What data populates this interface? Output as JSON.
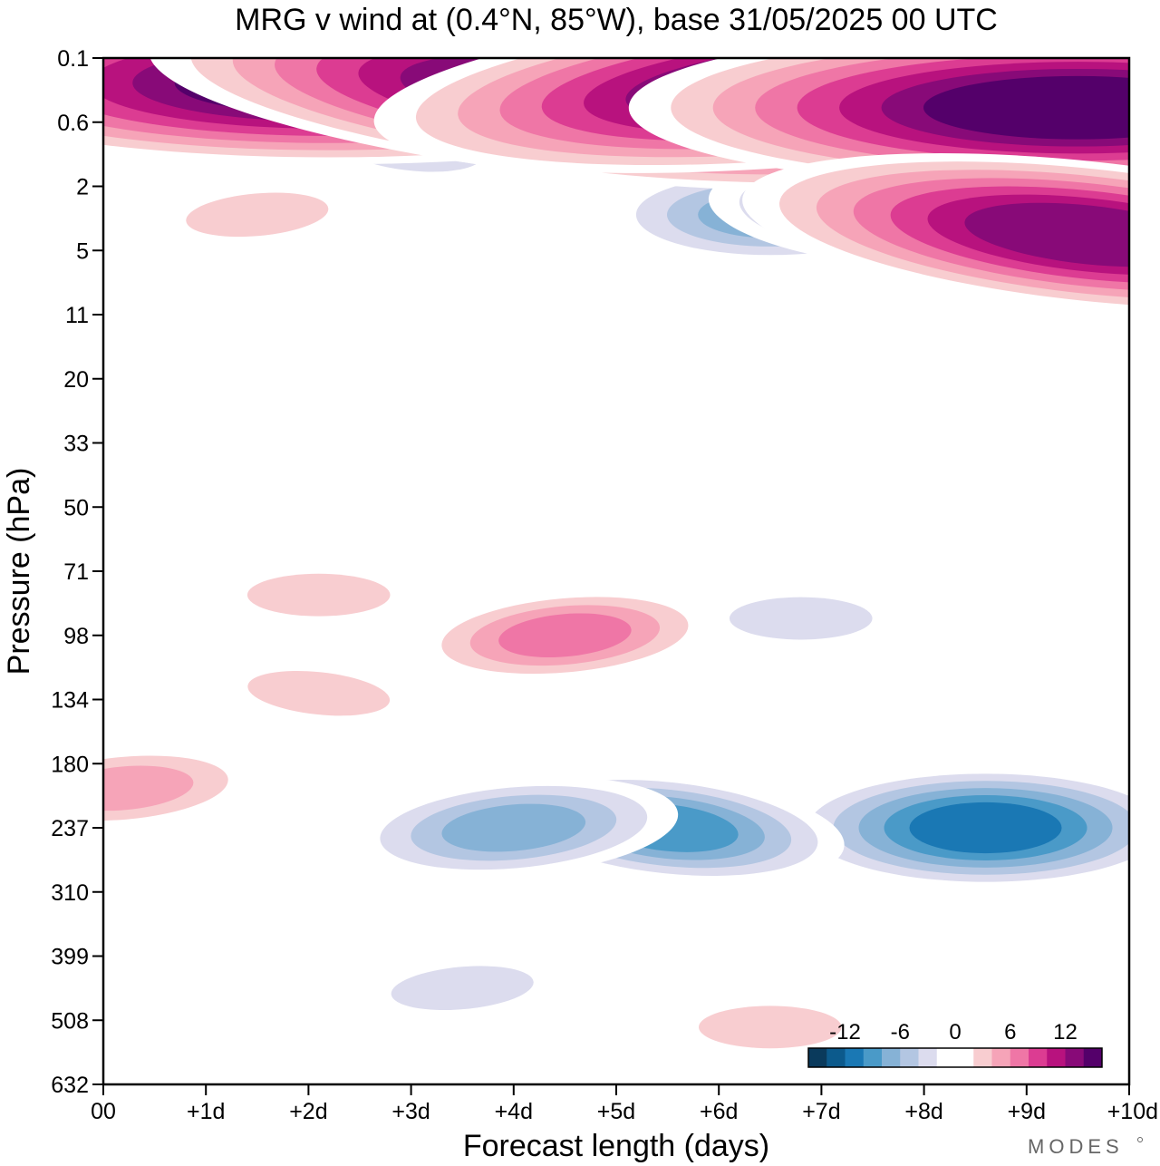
{
  "chart_data": {
    "type": "heatmap",
    "title": "MRG v wind at (0.4°N, 85°W),  base 31/05/2025  00 UTC",
    "xlabel": "Forecast length (days)",
    "ylabel": "Pressure (hPa)",
    "x_unit": "days",
    "x_range": [
      0,
      10
    ],
    "x_ticks": [
      0,
      1,
      2,
      3,
      4,
      5,
      6,
      7,
      8,
      9,
      10
    ],
    "x_tick_labels": [
      "00",
      "+1d",
      "+2d",
      "+3d",
      "+4d",
      "+5d",
      "+6d",
      "+7d",
      "+8d",
      "+9d",
      "+10d"
    ],
    "y_ticks": [
      0.1,
      0.6,
      2,
      5,
      11,
      20,
      33,
      50,
      71,
      98,
      134,
      180,
      237,
      310,
      399,
      508,
      632
    ],
    "y_tick_labels": [
      "0.1",
      "0.6",
      "2",
      "5",
      "11",
      "20",
      "33",
      "50",
      "71",
      "98",
      "134",
      "180",
      "237",
      "310",
      "399",
      "508",
      "632"
    ],
    "y_scale": "pressure, evenly spaced levels (top 0.1 hPa, bottom 632 hPa)",
    "colorbar": {
      "tick_labels": [
        "-12",
        "-6",
        "0",
        "6",
        "12"
      ],
      "tick_values": [
        -12,
        -6,
        0,
        6,
        12
      ],
      "colors": [
        "#0a3a5c",
        "#0c5a8c",
        "#1a78b4",
        "#4a9ac8",
        "#86b2d6",
        "#b3c6e2",
        "#dcdcee",
        "#ffffff",
        "#ffffff",
        "#f8cdd0",
        "#f6a4b8",
        "#ef76a6",
        "#dc3c92",
        "#b8127e",
        "#880a78",
        "#54006a"
      ],
      "placement": "bottom-right inside plot"
    },
    "features": [
      {
        "kind": "negative",
        "day": 8.6,
        "hpa": 237,
        "peak": -11
      },
      {
        "kind": "negative",
        "day": 5.5,
        "hpa": 237,
        "peak": -9
      },
      {
        "kind": "negative",
        "day": 4.0,
        "hpa": 237,
        "peak": -8
      },
      {
        "kind": "negative",
        "day": 6.5,
        "hpa": 3,
        "peak": -8
      },
      {
        "kind": "negative",
        "day": 7.5,
        "hpa": 3,
        "peak": -8
      },
      {
        "kind": "negative",
        "day": 3.5,
        "hpa": 450,
        "peak": -4
      },
      {
        "kind": "negative",
        "day": 6.8,
        "hpa": 90,
        "peak": -4
      },
      {
        "kind": "negative",
        "day": 3.0,
        "hpa": 1,
        "peak": -4
      },
      {
        "kind": "positive",
        "day": 4.5,
        "hpa": 98,
        "peak": 7
      },
      {
        "kind": "positive",
        "day": 2.1,
        "hpa": 80,
        "peak": 4
      },
      {
        "kind": "positive",
        "day": 2.1,
        "hpa": 130,
        "peak": 4
      },
      {
        "kind": "positive",
        "day": 0.2,
        "hpa": 200,
        "peak": 6
      },
      {
        "kind": "positive",
        "day": 6.5,
        "hpa": 520,
        "peak": 4
      },
      {
        "kind": "positive",
        "day": 1.5,
        "hpa": 340,
        "peak": 2
      },
      {
        "kind": "positive",
        "day": 1.5,
        "hpa": 3,
        "peak": 4
      },
      {
        "kind": "positive",
        "day": 2.2,
        "hpa": 0.2,
        "peak": 16
      },
      {
        "kind": "positive",
        "day": 4.8,
        "hpa": 0.3,
        "peak": 16
      },
      {
        "kind": "positive",
        "day": 7.0,
        "hpa": 0.2,
        "peak": 16
      },
      {
        "kind": "positive",
        "day": 9.5,
        "hpa": 0.4,
        "peak": 16
      },
      {
        "kind": "positive",
        "day": 9.6,
        "hpa": 4,
        "peak": 14
      }
    ]
  },
  "brand": "MODES"
}
